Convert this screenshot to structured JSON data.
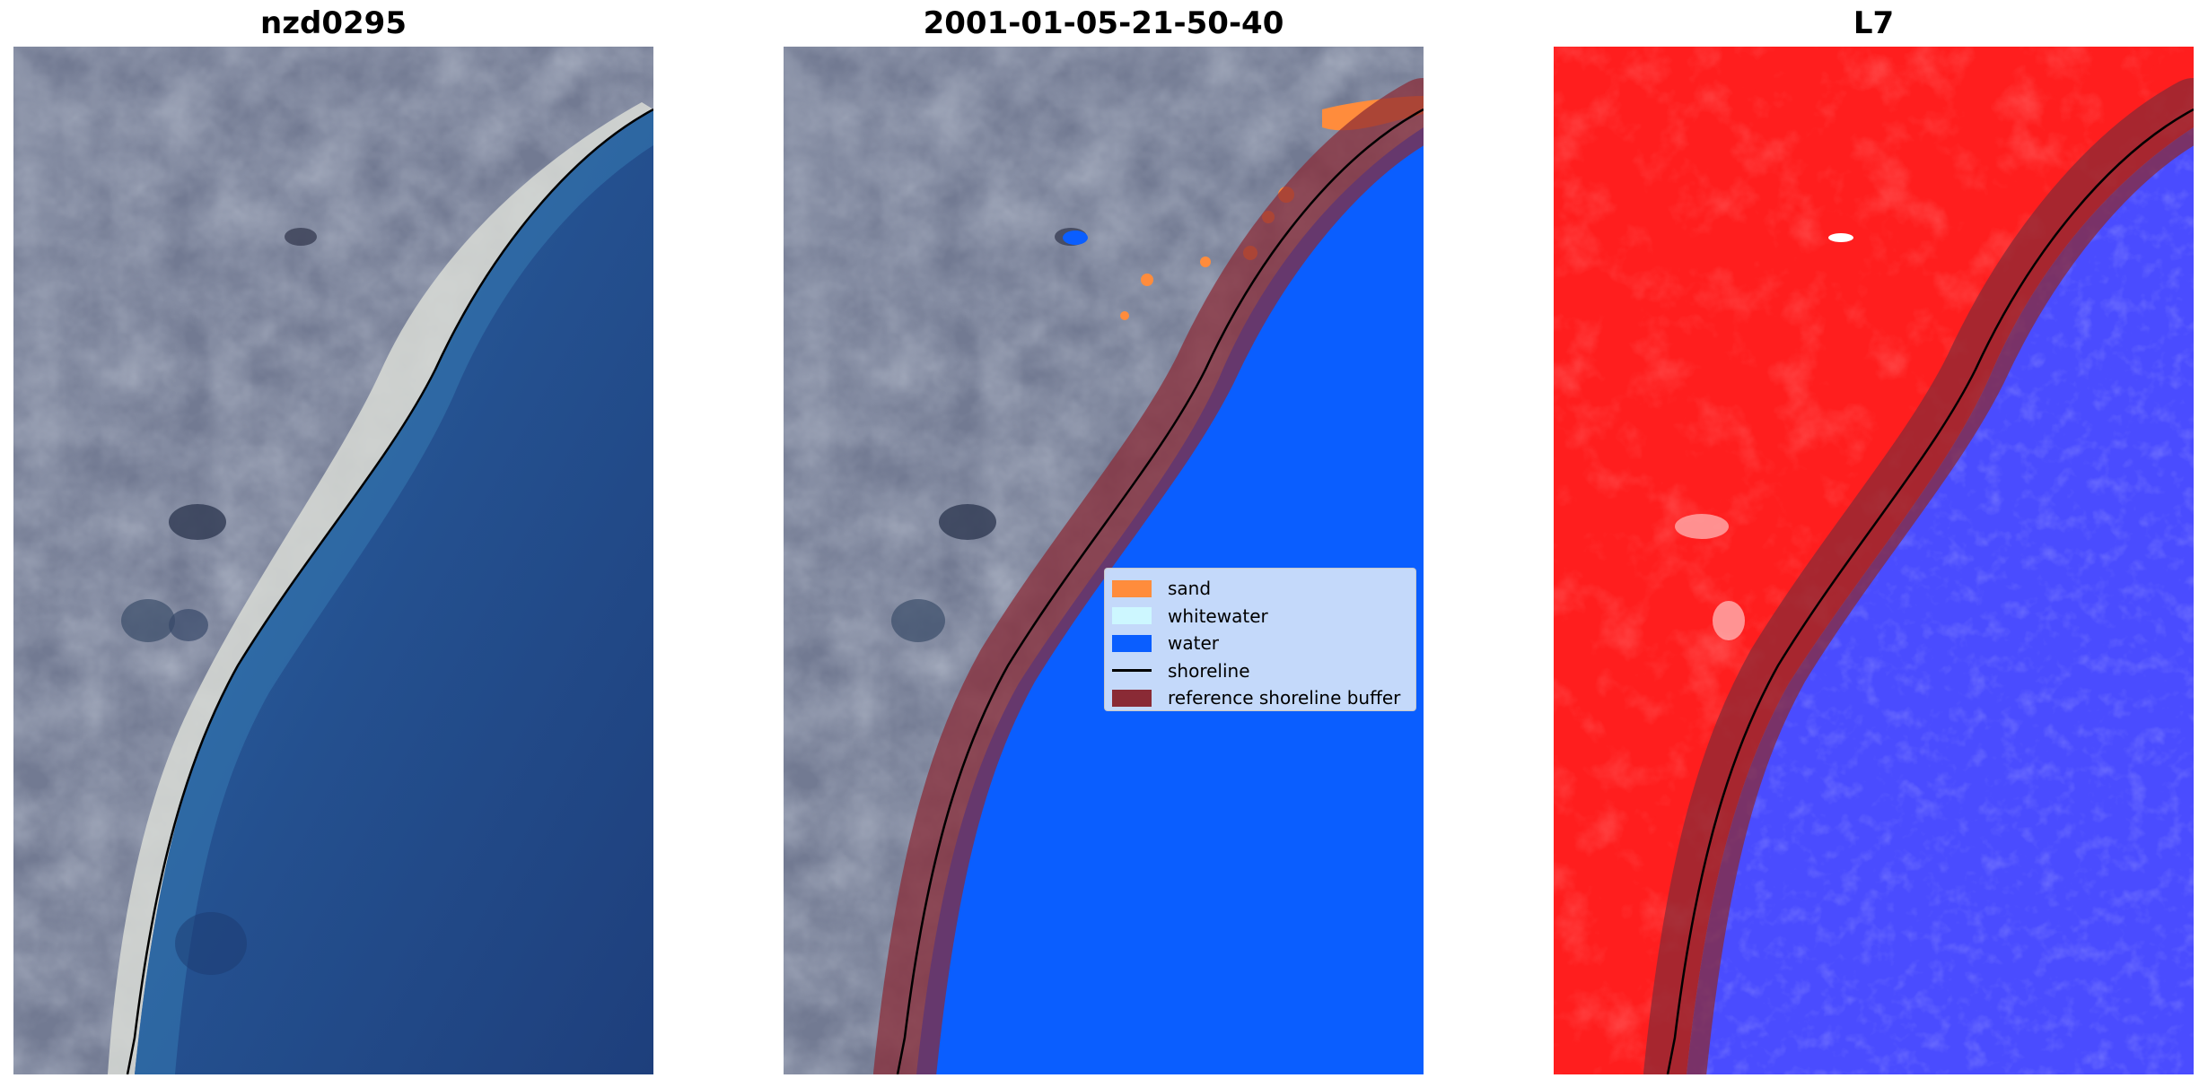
{
  "panels": [
    {
      "title": "nzd0295"
    },
    {
      "title": "2001-01-05-21-50-40"
    },
    {
      "title": "L7"
    }
  ],
  "legend": {
    "entries": [
      {
        "label": "sand",
        "color": "#ff8c3c",
        "kind": "patch"
      },
      {
        "label": "whitewater",
        "color": "#cdf7ff",
        "kind": "patch"
      },
      {
        "label": "water",
        "color": "#0a5eff",
        "kind": "patch"
      },
      {
        "label": "shoreline",
        "color": "#000000",
        "kind": "line"
      },
      {
        "label": "reference shoreline buffer",
        "color": "#8a2a35",
        "kind": "patch"
      }
    ]
  },
  "colors": {
    "land": "#6d7690",
    "ocean": "#2a5494",
    "water_class": "#0a5eff",
    "buffer": "#8a2a35",
    "l7_land": "#ff2020",
    "l7_water": "#4d4dff"
  }
}
